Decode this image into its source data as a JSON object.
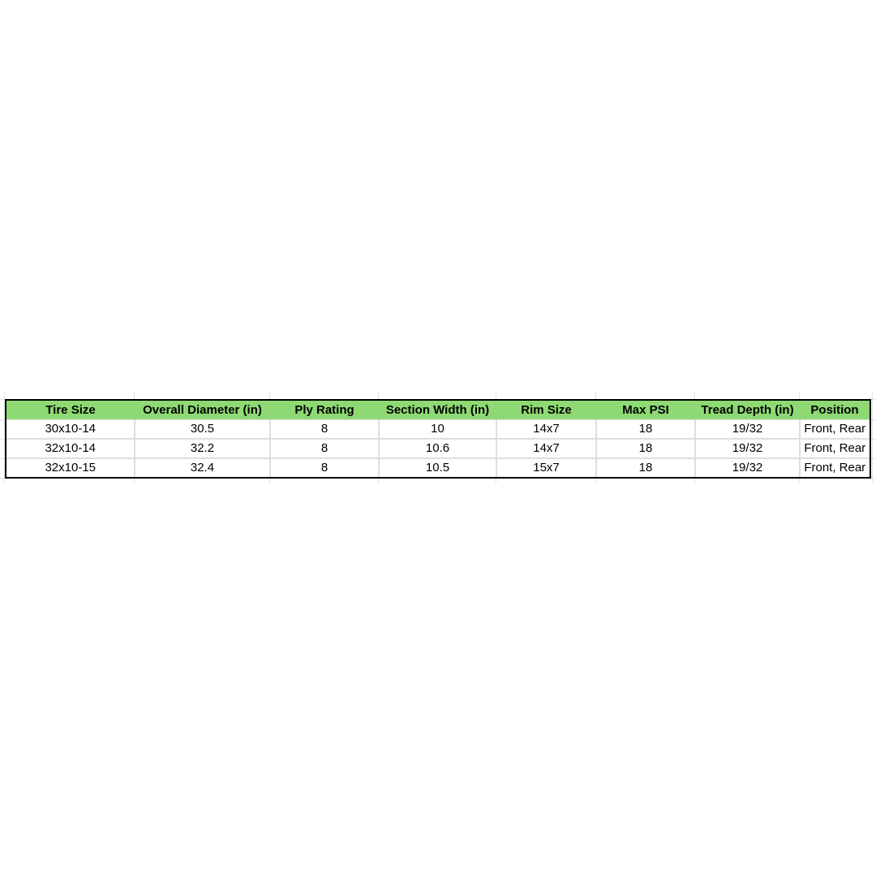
{
  "table": {
    "header_color": "#8ed973",
    "headers": [
      "Tire Size",
      "Overall Diameter (in)",
      "Ply Rating",
      "Section Width (in)",
      "Rim Size",
      "Max PSI",
      "Tread Depth (in)",
      "Position"
    ],
    "rows": [
      [
        "30x10-14",
        "30.5",
        "8",
        "10",
        "14x7",
        "18",
        "19/32",
        "Front, Rear"
      ],
      [
        "32x10-14",
        "32.2",
        "8",
        "10.6",
        "14x7",
        "18",
        "19/32",
        "Front, Rear"
      ],
      [
        "32x10-15",
        "32.4",
        "8",
        "10.5",
        "15x7",
        "18",
        "19/32",
        "Front, Rear"
      ]
    ]
  }
}
